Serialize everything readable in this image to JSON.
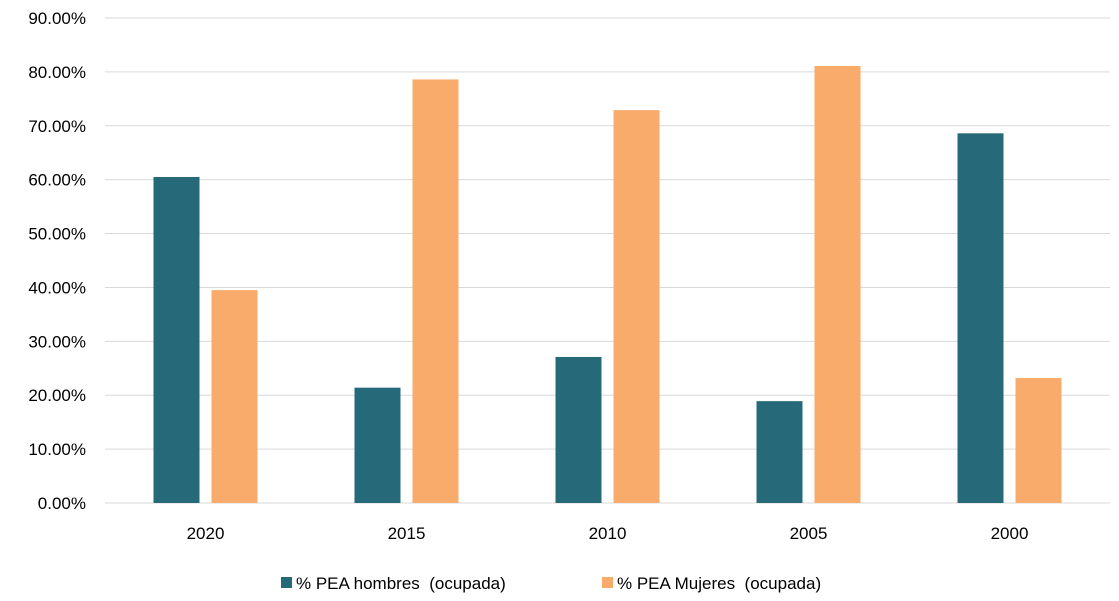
{
  "chart_data": {
    "type": "bar",
    "title": "",
    "xlabel": "",
    "ylabel": "",
    "categories": [
      "2020",
      "2015",
      "2010",
      "2005",
      "2000"
    ],
    "series": [
      {
        "name": "% PEA hombres  (ocupada)",
        "color": "#266a7a",
        "values": [
          60.5,
          21.4,
          27.1,
          18.9,
          68.6
        ]
      },
      {
        "name": "% PEA Mujeres  (ocupada)",
        "color": "#f9ab6b",
        "values": [
          39.5,
          78.6,
          72.9,
          81.1,
          23.2
        ]
      }
    ],
    "ylim": [
      0,
      90
    ],
    "yticks": [
      "0.00%",
      "10.00%",
      "20.00%",
      "30.00%",
      "40.00%",
      "50.00%",
      "60.00%",
      "70.00%",
      "80.00%",
      "90.00%"
    ],
    "grid": true,
    "gridline_color": "#d9d9d9",
    "legend_position": "bottom"
  }
}
